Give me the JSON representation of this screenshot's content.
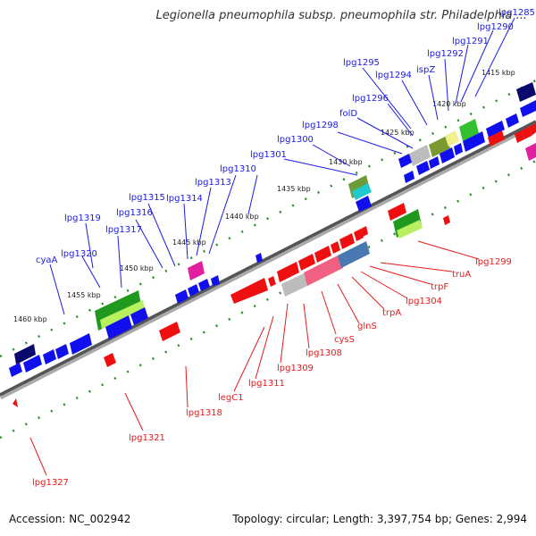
{
  "title": "Legionella pneumophila subsp. pneumophila str. Philadelphia ...",
  "footer": {
    "accession": "Accession: NC_002942",
    "summary": "Topology: circular; Length: 3,397,754 bp; Genes: 2,994"
  },
  "colors": {
    "forward_label": "#1a1ae6",
    "reverse_label": "#e61a1a",
    "forward_gene": "#1010ee",
    "reverse_gene": "#ee1010",
    "backbone": "#555555",
    "tick": "#2a8a2a"
  },
  "scale_ticks": [
    "1460 kbp",
    "1455 kbp",
    "1450 kbp",
    "1445 kbp",
    "1440 kbp",
    "1435 kbp",
    "1430 kbp",
    "1425 kbp",
    "1420 kbp",
    "1415 kbp"
  ],
  "forward_genes": [
    "cyaA",
    "lpg1320",
    "lpg1319",
    "lpg1317",
    "lpg1316",
    "lpg1315",
    "lpg1314",
    "lpg1313",
    "lpg1310",
    "lpg1301",
    "lpg1300",
    "lpg1298",
    "folD",
    "lpg1296",
    "lpg1295",
    "lpg1294",
    "ispZ",
    "lpg1292",
    "lpg1291",
    "lpg1290",
    "lpg1285"
  ],
  "reverse_genes": [
    "lpg1327",
    "lpg1321",
    "lpg1318",
    "legC1",
    "lpg1311",
    "lpg1309",
    "lpg1308",
    "cysS",
    "glnS",
    "trpA",
    "lpg1304",
    "trpF",
    "truA",
    "lpg1299"
  ]
}
